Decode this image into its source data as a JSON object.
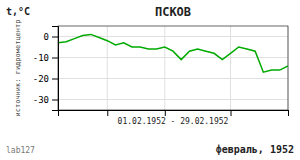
{
  "chart_data": {
    "type": "line",
    "title": "ПСКОВ",
    "ylabel": "t,°C",
    "xlabel": "01.02.1952 - 29.02.1952",
    "annotations": [
      "февраль, 1952",
      "источник: гидрометцентр",
      "lab127"
    ],
    "x": [
      1,
      2,
      3,
      4,
      5,
      6,
      7,
      8,
      9,
      10,
      11,
      12,
      13,
      14,
      15,
      16,
      17,
      18,
      19,
      20,
      21,
      22,
      23,
      24,
      25,
      26,
      27,
      28,
      29
    ],
    "values": [
      -3,
      -2.5,
      -1,
      0.5,
      1,
      -0.5,
      -2,
      -4,
      -3,
      -5,
      -5,
      -6,
      -6,
      -5,
      -7,
      -11,
      -7,
      -6,
      -7,
      -8,
      -11,
      -8,
      -5,
      -6,
      -7,
      -17,
      -16,
      -16,
      -14
    ],
    "color": "#00aa00",
    "xlim": [
      1,
      29
    ],
    "xticks": [
      7,
      14,
      22,
      29
    ],
    "ylim": [
      -35,
      5
    ],
    "yticks": [
      0,
      -10,
      -20,
      -30
    ],
    "grid": true,
    "tick_labels": "y"
  }
}
